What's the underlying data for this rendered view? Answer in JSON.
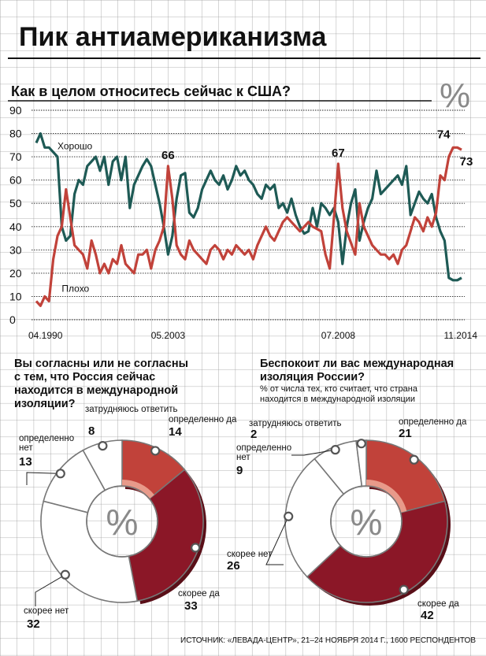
{
  "title": "Пик антиамериканизма",
  "line_chart": {
    "question": "Как в целом относитесь сейчас к США?",
    "percent_symbol": "%"
  },
  "pie_left": {
    "question_lines": [
      "Вы согласны или не согласны",
      "с тем, что Россия сейчас",
      "находится в международной",
      "изоляции?"
    ],
    "percent_symbol": "%"
  },
  "pie_right": {
    "question_lines": [
      "Беспокоит ли вас международная",
      "изоляция России?"
    ],
    "subtitle_lines": [
      "% от числа тех, кто считает, что страна",
      "находится в международной изоляции"
    ],
    "percent_symbol": "%"
  },
  "source": "ИСТОЧНИК: «ЛЕВАДА-ЦЕНТР», 21–24 НОЯБРЯ 2014 Г., 1600 РЕСПОНДЕНТОВ",
  "chart_data": [
    {
      "type": "line",
      "title": "Как в целом относитесь сейчас к США?",
      "ylim": [
        0,
        90
      ],
      "y_ticks": [
        "90",
        "80",
        "70",
        "60",
        "50",
        "40",
        "30",
        "20",
        "10",
        "0"
      ],
      "x_tick_labels": [
        "04.1990",
        "05.2003",
        "07.2008",
        "11.2014"
      ],
      "series": [
        {
          "name": "Хорошо",
          "color": "#1e5a55",
          "values": [
            76,
            80,
            74,
            74,
            72,
            70,
            40,
            34,
            36,
            54,
            60,
            58,
            66,
            68,
            70,
            64,
            70,
            58,
            68,
            70,
            60,
            70,
            48,
            58,
            62,
            66,
            69,
            66,
            58,
            50,
            40,
            28,
            36,
            52,
            62,
            63,
            46,
            44,
            48,
            56,
            60,
            64,
            60,
            58,
            62,
            56,
            60,
            66,
            62,
            64,
            60,
            58,
            54,
            52,
            58,
            56,
            58,
            48,
            50,
            46,
            52,
            45,
            40,
            37,
            38,
            48,
            40,
            50,
            48,
            45,
            48,
            42,
            24,
            40,
            50,
            56,
            34,
            42,
            48,
            52,
            64,
            54,
            56,
            58,
            60,
            62,
            58,
            66,
            45,
            50,
            55,
            52,
            50,
            54,
            44,
            38,
            34,
            18,
            17,
            17,
            18
          ]
        },
        {
          "name": "Плохо",
          "color": "#c1423a",
          "values": [
            8,
            6,
            10,
            8,
            26,
            36,
            40,
            56,
            44,
            32,
            30,
            28,
            22,
            34,
            28,
            20,
            24,
            20,
            26,
            24,
            32,
            24,
            22,
            20,
            28,
            28,
            30,
            22,
            30,
            34,
            40,
            66,
            52,
            32,
            28,
            26,
            34,
            30,
            28,
            26,
            24,
            30,
            32,
            30,
            26,
            30,
            28,
            32,
            30,
            28,
            30,
            26,
            32,
            36,
            40,
            36,
            34,
            38,
            42,
            44,
            42,
            40,
            38,
            40,
            42,
            40,
            39,
            38,
            28,
            22,
            44,
            67,
            48,
            38,
            33,
            28,
            50,
            40,
            36,
            32,
            30,
            28,
            28,
            26,
            28,
            24,
            30,
            32,
            38,
            44,
            42,
            38,
            44,
            40,
            46,
            62,
            60,
            70,
            74,
            74,
            73
          ]
        }
      ],
      "annotations": [
        {
          "label": "66",
          "value": 66,
          "series": "Плохо"
        },
        {
          "label": "67",
          "value": 67,
          "series": "Плохо"
        },
        {
          "label": "74",
          "value": 74,
          "series": "Плохо"
        },
        {
          "label": "73",
          "value": 73,
          "series": "Плохо"
        },
        {
          "label": "Хорошо",
          "series": "Хорошо"
        },
        {
          "label": "Плохо",
          "series": "Плохо"
        }
      ]
    },
    {
      "type": "pie",
      "title": "Вы согласны или не согласны с тем, что Россия сейчас находится в международной изоляции?",
      "slices": [
        {
          "label": "определенно да",
          "value": 14,
          "color": "#c1423a"
        },
        {
          "label": "скорее да",
          "value": 33,
          "color": "#8b1727"
        },
        {
          "label": "скорее нет",
          "value": 32,
          "color": "#ffffff"
        },
        {
          "label": "определенно нет",
          "value": 13,
          "color": "#ffffff"
        },
        {
          "label": "затрудняюсь ответить",
          "value": 8,
          "color": "#ffffff"
        }
      ]
    },
    {
      "type": "pie",
      "title": "Беспокоит ли вас международная изоляция России?",
      "subtitle": "% от числа тех, кто считает, что страна находится в международной изоляции",
      "slices": [
        {
          "label": "определенно да",
          "value": 21,
          "color": "#c1423a"
        },
        {
          "label": "скорее да",
          "value": 42,
          "color": "#8b1727"
        },
        {
          "label": "скорее нет",
          "value": 26,
          "color": "#ffffff"
        },
        {
          "label": "определенно нет",
          "value": 9,
          "color": "#ffffff"
        },
        {
          "label": "затрудняюсь ответить",
          "value": 2,
          "color": "#ffffff"
        }
      ]
    }
  ]
}
